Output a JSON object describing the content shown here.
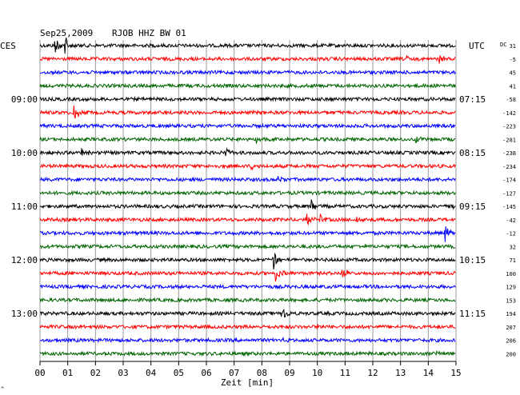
{
  "header": {
    "date": "Sep25,2009",
    "station": "RJOB HHZ BW 01",
    "left_zone": "CES",
    "right_zone": "UTC",
    "dc_label": "DC"
  },
  "chart_data": {
    "type": "line",
    "xlabel": "Zeit [min]",
    "xlim": [
      0,
      15
    ],
    "x_ticks": [
      "00",
      "01",
      "02",
      "03",
      "04",
      "05",
      "06",
      "07",
      "08",
      "09",
      "10",
      "11",
      "12",
      "13",
      "14",
      "15"
    ],
    "trace_colors": [
      "#000000",
      "#ff0000",
      "#0000ff",
      "#006400"
    ],
    "left_hour_labels": [
      {
        "row": 4,
        "label": "09:00"
      },
      {
        "row": 8,
        "label": "10:00"
      },
      {
        "row": 12,
        "label": "11:00"
      },
      {
        "row": 16,
        "label": "12:00"
      },
      {
        "row": 20,
        "label": "13:00"
      }
    ],
    "right_hour_labels": [
      {
        "row": 4,
        "label": "07:15"
      },
      {
        "row": 8,
        "label": "08:15"
      },
      {
        "row": 12,
        "label": "09:15"
      },
      {
        "row": 16,
        "label": "10:15"
      },
      {
        "row": 20,
        "label": "11:15"
      }
    ],
    "dc_offsets": [
      "31",
      "-5",
      "45",
      "41",
      "-58",
      "-142",
      "-223",
      "-281",
      "-238",
      "-234",
      "-174",
      "-127",
      "-145",
      "-42",
      "-12",
      "32",
      "71",
      "100",
      "129",
      "153",
      "194",
      "207",
      "206",
      "200"
    ],
    "events": [
      {
        "row": 0,
        "minute": 0.55,
        "amp": 11
      },
      {
        "row": 0,
        "minute": 0.9,
        "amp": 12
      },
      {
        "row": 1,
        "minute": 13.2,
        "amp": 5
      },
      {
        "row": 1,
        "minute": 14.4,
        "amp": 6
      },
      {
        "row": 5,
        "minute": 1.2,
        "amp": 14
      },
      {
        "row": 7,
        "minute": 7.8,
        "amp": 5
      },
      {
        "row": 7,
        "minute": 13.5,
        "amp": 5
      },
      {
        "row": 8,
        "minute": 1.5,
        "amp": 12
      },
      {
        "row": 8,
        "minute": 6.7,
        "amp": 5
      },
      {
        "row": 9,
        "minute": 7.6,
        "amp": 4
      },
      {
        "row": 10,
        "minute": 8.6,
        "amp": 4
      },
      {
        "row": 12,
        "minute": 9.8,
        "amp": 9
      },
      {
        "row": 12,
        "minute": 14.7,
        "amp": 10
      },
      {
        "row": 13,
        "minute": 9.6,
        "amp": 9
      },
      {
        "row": 13,
        "minute": 10.1,
        "amp": 7
      },
      {
        "row": 13,
        "minute": 11.4,
        "amp": 5
      },
      {
        "row": 14,
        "minute": 14.6,
        "amp": 14
      },
      {
        "row": 16,
        "minute": 8.4,
        "amp": 14
      },
      {
        "row": 17,
        "minute": 8.5,
        "amp": 10
      },
      {
        "row": 17,
        "minute": 10.9,
        "amp": 9
      },
      {
        "row": 20,
        "minute": 8.7,
        "amp": 12
      },
      {
        "row": 21,
        "minute": 10.0,
        "amp": 4
      },
      {
        "row": 22,
        "minute": 8.6,
        "amp": 4
      },
      {
        "row": 23,
        "minute": 14.3,
        "amp": 4
      }
    ]
  },
  "footer": {
    "corner_mark": "^"
  }
}
